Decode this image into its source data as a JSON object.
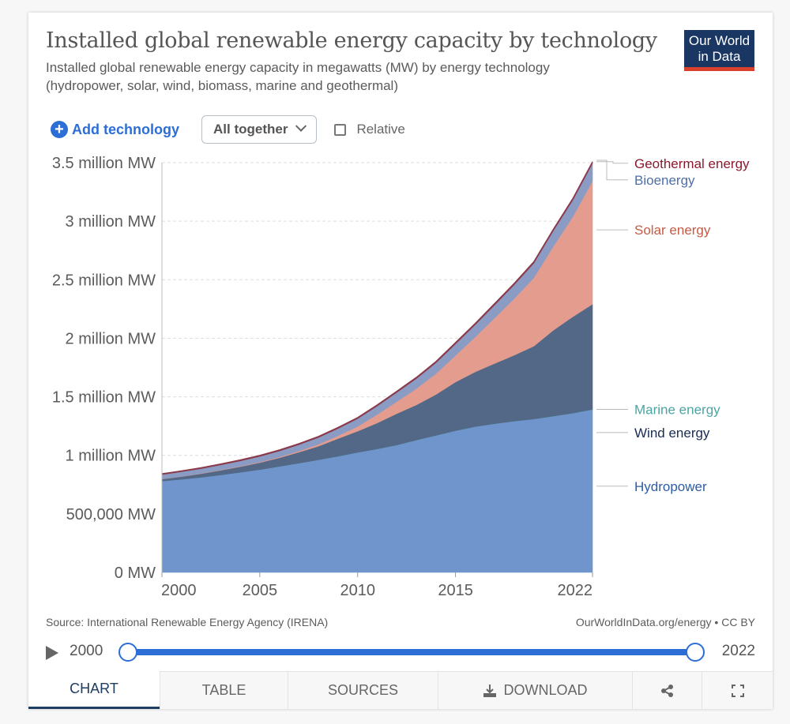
{
  "header": {
    "title": "Installed global renewable energy capacity by technology",
    "subtitle_line1": "Installed global renewable energy capacity in megawatts (MW) by energy technology",
    "subtitle_line2": "(hydropower, solar, wind, biomass, marine and geothermal)",
    "logo_line1": "Our World",
    "logo_line2": "in Data"
  },
  "controls": {
    "add_label": "Add technology",
    "add_icon": "plus-circle-icon",
    "dropdown_value": "All together",
    "relative_label": "Relative",
    "relative_checked": false
  },
  "footer": {
    "source": "Source: International Renewable Energy Agency (IRENA)",
    "license": "OurWorldInData.org/energy • CC BY"
  },
  "timeline": {
    "start_label": "2000",
    "end_label": "2022",
    "range_start_fraction": 0,
    "range_end_fraction": 1
  },
  "tabs": [
    {
      "label": "CHART",
      "active": true
    },
    {
      "label": "TABLE",
      "active": false
    },
    {
      "label": "SOURCES",
      "active": false
    },
    {
      "label": "DOWNLOAD",
      "icon": "download-icon",
      "active": false
    },
    {
      "label": "",
      "icon": "share-icon",
      "active": false
    },
    {
      "label": "",
      "icon": "fullscreen-icon",
      "active": false
    }
  ],
  "colors": {
    "hydropower": "#6f95cc",
    "marine": "#4aa5a3",
    "wind": "#536887",
    "solar": "#e39c8e",
    "bioenergy": "#8a9cc4",
    "geothermal": "#8b3a4a"
  },
  "chart_data": {
    "type": "area",
    "stacked": true,
    "title": "Installed global renewable energy capacity by technology",
    "subtitle": "Installed global renewable energy capacity in megawatts (MW) by energy technology (hydropower, solar, wind, biomass, marine and geothermal)",
    "xlabel": "",
    "ylabel": "",
    "x": [
      2000,
      2001,
      2002,
      2003,
      2004,
      2005,
      2006,
      2007,
      2008,
      2009,
      2010,
      2011,
      2012,
      2013,
      2014,
      2015,
      2016,
      2017,
      2018,
      2019,
      2020,
      2021,
      2022
    ],
    "x_ticks": [
      2000,
      2005,
      2010,
      2015,
      2022
    ],
    "y_ticks": [
      {
        "value": 0,
        "label": "0 MW"
      },
      {
        "value": 500000,
        "label": "500,000 MW"
      },
      {
        "value": 1000000,
        "label": "1 million MW"
      },
      {
        "value": 1500000,
        "label": "1.5 million MW"
      },
      {
        "value": 2000000,
        "label": "2 million MW"
      },
      {
        "value": 2500000,
        "label": "2.5 million MW"
      },
      {
        "value": 3000000,
        "label": "3 million MW"
      },
      {
        "value": 3500000,
        "label": "3.5 million MW"
      }
    ],
    "ylim": [
      0,
      3500000
    ],
    "grid": true,
    "legend_position": "right-inline",
    "series": [
      {
        "name": "Hydropower",
        "key": "hydropower",
        "values": [
          780000,
          795000,
          812000,
          832000,
          855000,
          878000,
          905000,
          933000,
          962000,
          992000,
          1025000,
          1055000,
          1088000,
          1130000,
          1170000,
          1210000,
          1245000,
          1270000,
          1292000,
          1310000,
          1335000,
          1360000,
          1392000
        ]
      },
      {
        "name": "Marine energy",
        "key": "marine",
        "values": [
          250,
          250,
          250,
          250,
          250,
          260,
          260,
          260,
          260,
          260,
          260,
          260,
          510,
          510,
          520,
          520,
          520,
          530,
          530,
          530,
          530,
          530,
          530
        ]
      },
      {
        "name": "Wind energy",
        "key": "wind",
        "values": [
          17000,
          24000,
          31000,
          40000,
          48000,
          59000,
          74000,
          94000,
          116000,
          151000,
          181000,
          221000,
          268000,
          300000,
          349000,
          416000,
          467000,
          514000,
          563000,
          622000,
          733000,
          824000,
          899000
        ]
      },
      {
        "name": "Solar energy",
        "key": "solar",
        "values": [
          1200,
          1600,
          2200,
          2900,
          4000,
          5500,
          7000,
          10000,
          16000,
          24000,
          41000,
          73000,
          103000,
          140000,
          179000,
          227000,
          298000,
          390000,
          484000,
          584000,
          717000,
          856000,
          1053000
        ]
      },
      {
        "name": "Bioenergy",
        "key": "bioenergy",
        "values": [
          37000,
          39000,
          41000,
          43000,
          45000,
          48000,
          51000,
          54000,
          58000,
          62000,
          66000,
          72000,
          78000,
          85000,
          92000,
          98000,
          104000,
          110000,
          117000,
          124000,
          133000,
          141000,
          149000
        ]
      },
      {
        "name": "Geothermal energy",
        "key": "geothermal",
        "values": [
          8000,
          8100,
          8300,
          8500,
          8700,
          8900,
          9100,
          9300,
          9700,
          10000,
          10000,
          10100,
          10400,
          10800,
          11200,
          11800,
          12300,
          12700,
          13200,
          13900,
          14000,
          14500,
          14700
        ]
      }
    ]
  }
}
